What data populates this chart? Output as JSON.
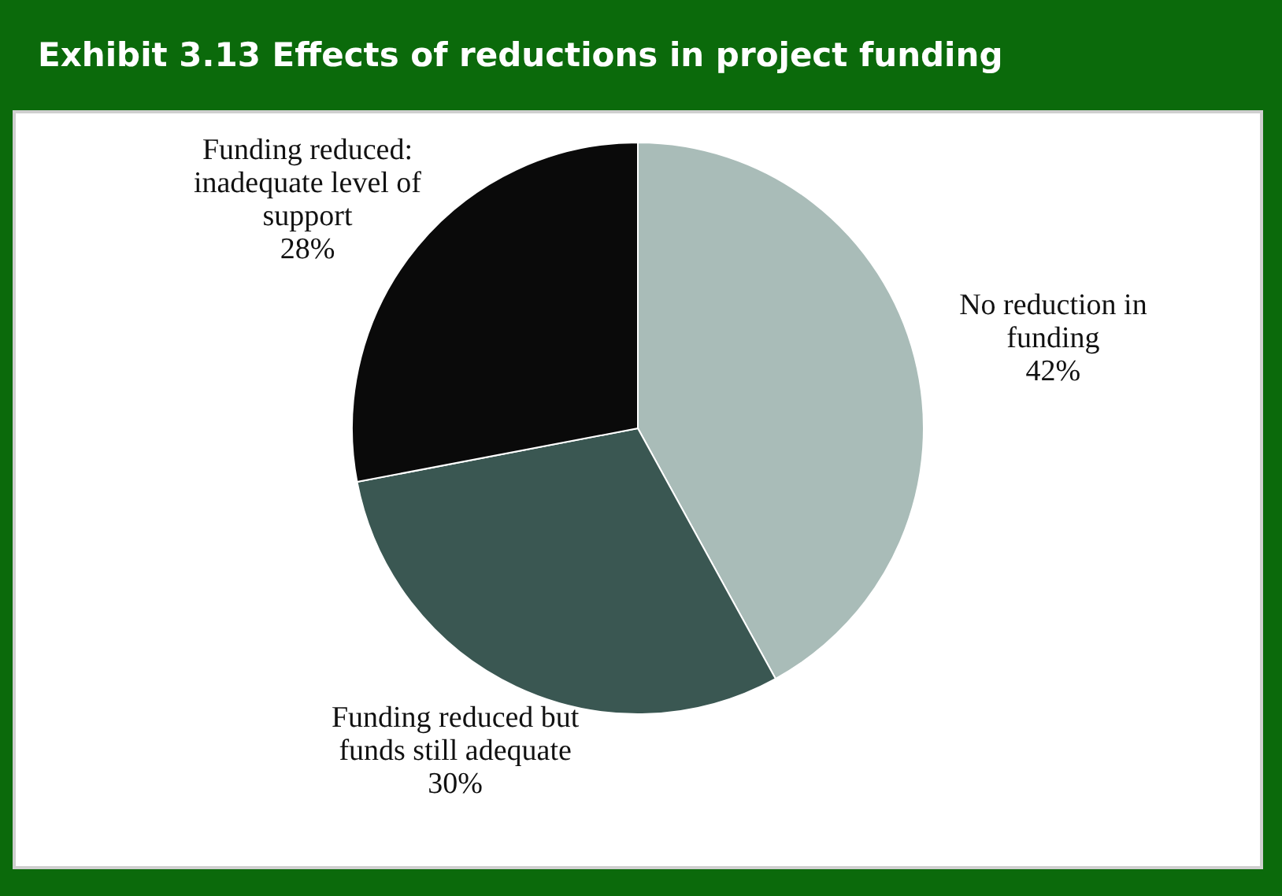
{
  "chart_data": {
    "type": "pie",
    "title": "Exhibit 3.13 Effects of reductions in project funding",
    "categories": [
      "No reduction in funding",
      "Funding reduced but funds still adequate",
      "Funding reduced: inadequate level of support"
    ],
    "values": [
      42,
      30,
      28
    ],
    "value_labels": [
      "42%",
      "30%",
      "28%"
    ],
    "colors": [
      "#a9bcb8",
      "#3a5752",
      "#0a0a0a"
    ],
    "legend": false
  }
}
